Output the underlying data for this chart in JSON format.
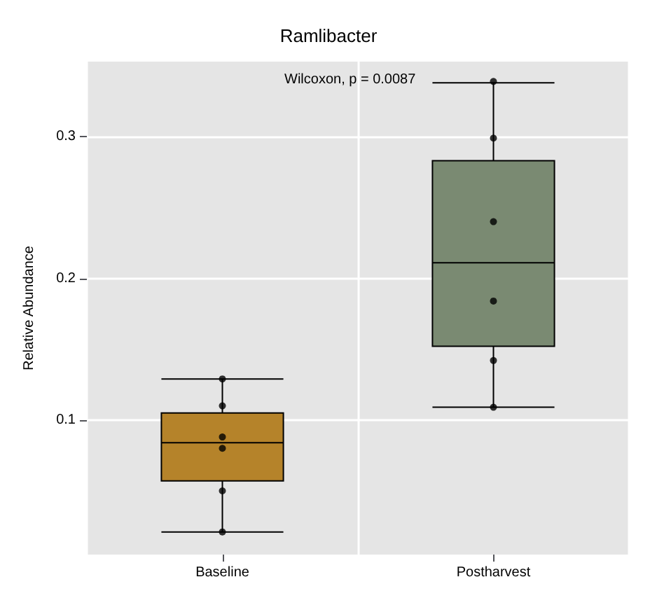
{
  "chart_data": {
    "type": "box",
    "title": "Ramlibacter",
    "ylabel": "Relative Abundance",
    "categories": [
      "Baseline",
      "Postharvest"
    ],
    "ylim": [
      0.005,
      0.353
    ],
    "yticks": [
      0.1,
      0.2,
      0.3
    ],
    "grid": true,
    "annotations": [
      "Wilcoxon, p = 0.0087"
    ],
    "series": [
      {
        "type": "box",
        "colors": [
          "#b5832a",
          "#7a8a72"
        ],
        "boxes": [
          {
            "low": 0.021,
            "q1": 0.057,
            "median": 0.084,
            "q3": 0.105,
            "high": 0.129
          },
          {
            "low": 0.109,
            "q1": 0.152,
            "median": 0.211,
            "q3": 0.283,
            "high": 0.338
          }
        ]
      },
      {
        "type": "scatter",
        "color": "#000000",
        "marker": "circle",
        "x": [
          "Baseline",
          "Baseline",
          "Baseline",
          "Baseline",
          "Baseline",
          "Baseline",
          "Postharvest",
          "Postharvest",
          "Postharvest",
          "Postharvest",
          "Postharvest",
          "Postharvest"
        ],
        "values": [
          0.129,
          0.11,
          0.088,
          0.08,
          0.05,
          0.021,
          0.339,
          0.299,
          0.24,
          0.184,
          0.142,
          0.109
        ]
      }
    ]
  }
}
